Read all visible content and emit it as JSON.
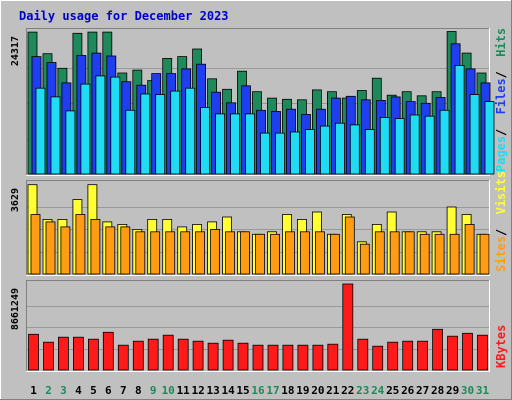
{
  "chart_data": {
    "type": "bar",
    "title": "Daily usage for December 2023",
    "categories": [
      "1",
      "2",
      "3",
      "4",
      "5",
      "6",
      "7",
      "8",
      "9",
      "10",
      "11",
      "12",
      "13",
      "14",
      "15",
      "16",
      "17",
      "18",
      "19",
      "20",
      "21",
      "22",
      "23",
      "24",
      "25",
      "26",
      "27",
      "28",
      "29",
      "30",
      "31"
    ],
    "weekend_days": [
      "2",
      "3",
      "9",
      "10",
      "16",
      "17",
      "23",
      "24",
      "30",
      "31"
    ],
    "panels": [
      {
        "id": "hits-files-pages",
        "max_label": "24317",
        "ymax": 24317,
        "legend": [
          "Pages",
          "Files",
          "Hits"
        ],
        "series": [
          {
            "name": "Hits",
            "color": "#1e8a5c",
            "values": [
              24300,
              20600,
              18100,
              24100,
              24300,
              24300,
              17300,
              17800,
              16000,
              19800,
              20100,
              21400,
              16300,
              14500,
              17600,
              14100,
              13000,
              12800,
              12700,
              14400,
              14100,
              13000,
              14300,
              16400,
              13500,
              14100,
              13400,
              14100,
              24400,
              20700,
              17300
            ]
          },
          {
            "name": "Files",
            "color": "#1f3ef0",
            "values": [
              20100,
              19100,
              15600,
              20300,
              20700,
              20200,
              15800,
              15200,
              17200,
              17200,
              18000,
              18800,
              14000,
              12200,
              15100,
              10900,
              10700,
              11100,
              10200,
              11100,
              13000,
              13300,
              12700,
              12600,
              13200,
              12400,
              12100,
              13100,
              22300,
              18000,
              15600
            ]
          },
          {
            "name": "Pages",
            "color": "#1fdbf4",
            "values": [
              14700,
              13200,
              10800,
              15400,
              16800,
              16600,
              10900,
              13700,
              13600,
              14200,
              14700,
              11400,
              10300,
              10300,
              10300,
              7000,
              7000,
              7200,
              7600,
              8200,
              8700,
              8400,
              7600,
              9700,
              9500,
              10100,
              9900,
              10900,
              18600,
              13600,
              12400
            ]
          }
        ]
      },
      {
        "id": "visits-sites",
        "max_label": "3629",
        "ymax": 3629,
        "legend": [
          "Sites",
          "Visits"
        ],
        "series": [
          {
            "name": "Visits",
            "color": "#ffff33",
            "values": [
              3600,
              2200,
              2200,
              3000,
              3600,
              2100,
              2000,
              1800,
              2200,
              2200,
              1900,
              2000,
              2100,
              2300,
              1700,
              1600,
              1700,
              2400,
              2200,
              2500,
              1600,
              2400,
              1300,
              2000,
              2500,
              1700,
              1700,
              1700,
              2700,
              2400,
              1600
            ]
          },
          {
            "name": "Sites",
            "color": "#ff9c14",
            "values": [
              2400,
              2100,
              1900,
              2400,
              2200,
              1900,
              1900,
              1700,
              1700,
              1700,
              1700,
              1700,
              1800,
              1700,
              1700,
              1600,
              1600,
              1700,
              1700,
              1700,
              1600,
              2300,
              1200,
              1700,
              1700,
              1700,
              1600,
              1600,
              1600,
              2000,
              1600
            ]
          }
        ]
      },
      {
        "id": "kbytes",
        "max_label": "8661249",
        "ymax": 8661249,
        "legend": [
          "KBytes"
        ],
        "series": [
          {
            "name": "KBytes",
            "color": "#ff1a1a",
            "values": [
              3600000,
              2800000,
              3300000,
              3300000,
              3100000,
              3800000,
              2500000,
              2900000,
              3100000,
              3500000,
              3100000,
              2900000,
              2700000,
              3000000,
              2700000,
              2500000,
              2500000,
              2500000,
              2500000,
              2500000,
              2600000,
              8661249,
              3100000,
              2400000,
              2800000,
              2900000,
              2900000,
              4100000,
              3400000,
              3700000,
              3500000
            ]
          }
        ]
      }
    ]
  }
}
